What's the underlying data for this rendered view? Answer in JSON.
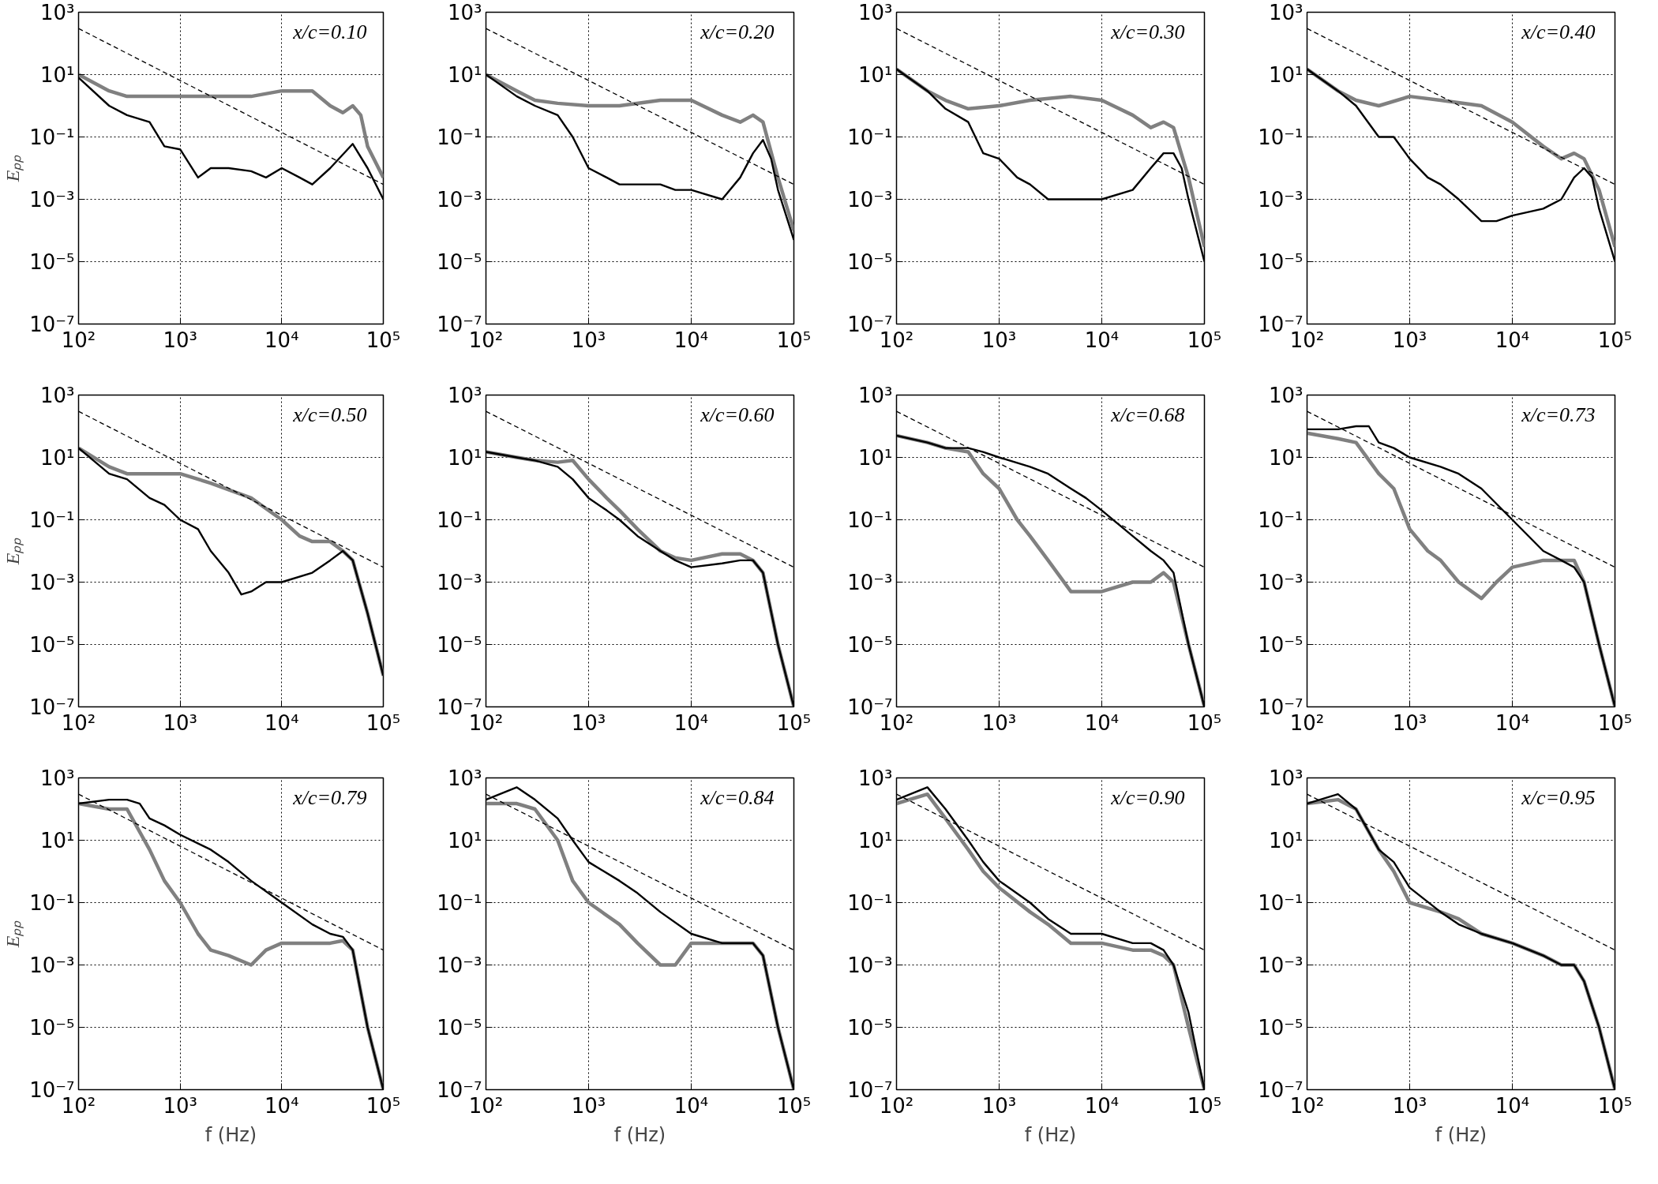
{
  "chart_data": [
    {
      "type": "line",
      "annotations": [
        "x/c=0.10"
      ],
      "ylabel": "Eₚₚ",
      "log": "xy",
      "grid": true,
      "xlim": [
        100,
        100000
      ],
      "ylim": [
        1e-07,
        1000
      ],
      "xticks": [
        {
          "value": 100,
          "label": "10²"
        },
        {
          "value": 1000,
          "label": "10³"
        },
        {
          "value": 10000,
          "label": "10⁴"
        },
        {
          "value": 100000,
          "label": "10⁵"
        }
      ],
      "yticks": [
        {
          "value": 1000,
          "label": "10³"
        },
        {
          "value": 10,
          "label": "10¹"
        },
        {
          "value": 0.1,
          "label": "10⁻¹"
        },
        {
          "value": 0.001,
          "label": "10⁻³"
        },
        {
          "value": 1e-05,
          "label": "10⁻⁵"
        },
        {
          "value": 1e-07,
          "label": "10⁻⁷"
        }
      ],
      "series": [
        {
          "color": "#808080",
          "x": [
            100,
            200,
            300,
            500,
            1000,
            2000,
            5000,
            10000,
            20000,
            30000,
            40000,
            50000,
            60000,
            70000,
            100000
          ],
          "values": [
            10,
            3,
            2,
            2,
            2,
            2,
            2,
            3,
            3,
            1,
            0.6,
            1,
            0.5,
            0.05,
            0.005
          ]
        },
        {
          "color": "#000000",
          "x": [
            100,
            200,
            300,
            500,
            700,
            1000,
            1500,
            2000,
            3000,
            5000,
            7000,
            10000,
            15000,
            20000,
            30000,
            50000,
            70000,
            100000
          ],
          "values": [
            8,
            1,
            0.5,
            0.3,
            0.05,
            0.04,
            0.005,
            0.01,
            0.01,
            0.008,
            0.005,
            0.01,
            0.005,
            0.003,
            0.01,
            0.06,
            0.01,
            0.001
          ]
        },
        {
          "color": "#000000",
          "line_style": "dashed",
          "x": [
            100,
            100000
          ],
          "values": [
            300,
            0.003
          ]
        }
      ]
    },
    {
      "type": "line",
      "annotations": [
        "x/c=0.20"
      ],
      "log": "xy",
      "grid": true,
      "xlim": [
        100,
        100000
      ],
      "ylim": [
        1e-07,
        1000
      ],
      "xticks": [
        {
          "value": 100,
          "label": "10²"
        },
        {
          "value": 1000,
          "label": "10³"
        },
        {
          "value": 10000,
          "label": "10⁴"
        },
        {
          "value": 100000,
          "label": "10⁵"
        }
      ],
      "yticks": [
        {
          "value": 1000,
          "label": "10³"
        },
        {
          "value": 10,
          "label": "10¹"
        },
        {
          "value": 0.1,
          "label": "10⁻¹"
        },
        {
          "value": 0.001,
          "label": "10⁻³"
        },
        {
          "value": 1e-05,
          "label": "10⁻⁵"
        },
        {
          "value": 1e-07,
          "label": "10⁻⁷"
        }
      ],
      "series": [
        {
          "color": "#808080",
          "x": [
            100,
            200,
            300,
            500,
            1000,
            2000,
            5000,
            10000,
            20000,
            30000,
            40000,
            50000,
            70000,
            100000
          ],
          "values": [
            10,
            3,
            1.5,
            1.2,
            1,
            1,
            1.5,
            1.5,
            0.5,
            0.3,
            0.5,
            0.3,
            0.005,
            0.0001
          ]
        },
        {
          "color": "#000000",
          "x": [
            100,
            200,
            300,
            500,
            700,
            1000,
            1500,
            2000,
            3000,
            5000,
            7000,
            10000,
            20000,
            30000,
            40000,
            50000,
            60000,
            70000,
            100000
          ],
          "values": [
            10,
            2,
            1,
            0.5,
            0.1,
            0.01,
            0.005,
            0.003,
            0.003,
            0.003,
            0.002,
            0.002,
            0.001,
            0.005,
            0.03,
            0.08,
            0.02,
            0.002,
            5e-05
          ]
        },
        {
          "color": "#000000",
          "line_style": "dashed",
          "x": [
            100,
            100000
          ],
          "values": [
            300,
            0.003
          ]
        }
      ]
    },
    {
      "type": "line",
      "annotations": [
        "x/c=0.30"
      ],
      "log": "xy",
      "grid": true,
      "xlim": [
        100,
        100000
      ],
      "ylim": [
        1e-07,
        1000
      ],
      "xticks": [
        {
          "value": 100,
          "label": "10²"
        },
        {
          "value": 1000,
          "label": "10³"
        },
        {
          "value": 10000,
          "label": "10⁴"
        },
        {
          "value": 100000,
          "label": "10⁵"
        }
      ],
      "yticks": [
        {
          "value": 1000,
          "label": "10³"
        },
        {
          "value": 10,
          "label": "10¹"
        },
        {
          "value": 0.1,
          "label": "10⁻¹"
        },
        {
          "value": 0.001,
          "label": "10⁻³"
        },
        {
          "value": 1e-05,
          "label": "10⁻⁵"
        },
        {
          "value": 1e-07,
          "label": "10⁻⁷"
        }
      ],
      "series": [
        {
          "color": "#808080",
          "x": [
            100,
            200,
            300,
            500,
            1000,
            2000,
            5000,
            10000,
            20000,
            30000,
            40000,
            50000,
            70000,
            100000
          ],
          "values": [
            15,
            3,
            1.5,
            0.8,
            1,
            1.5,
            2,
            1.5,
            0.5,
            0.2,
            0.3,
            0.2,
            0.005,
            3e-05
          ]
        },
        {
          "color": "#000000",
          "x": [
            100,
            200,
            300,
            500,
            700,
            1000,
            1500,
            2000,
            3000,
            5000,
            7000,
            10000,
            20000,
            30000,
            40000,
            50000,
            60000,
            70000,
            100000
          ],
          "values": [
            15,
            3,
            0.8,
            0.3,
            0.03,
            0.02,
            0.005,
            0.003,
            0.001,
            0.001,
            0.001,
            0.001,
            0.002,
            0.01,
            0.03,
            0.03,
            0.01,
            0.001,
            1e-05
          ]
        },
        {
          "color": "#000000",
          "line_style": "dashed",
          "x": [
            100,
            100000
          ],
          "values": [
            300,
            0.003
          ]
        }
      ]
    },
    {
      "type": "line",
      "annotations": [
        "x/c=0.40"
      ],
      "log": "xy",
      "grid": true,
      "xlim": [
        100,
        100000
      ],
      "ylim": [
        1e-07,
        1000
      ],
      "xticks": [
        {
          "value": 100,
          "label": "10²"
        },
        {
          "value": 1000,
          "label": "10³"
        },
        {
          "value": 10000,
          "label": "10⁴"
        },
        {
          "value": 100000,
          "label": "10⁵"
        }
      ],
      "yticks": [
        {
          "value": 1000,
          "label": "10³"
        },
        {
          "value": 10,
          "label": "10¹"
        },
        {
          "value": 0.1,
          "label": "10⁻¹"
        },
        {
          "value": 0.001,
          "label": "10⁻³"
        },
        {
          "value": 1e-05,
          "label": "10⁻⁵"
        },
        {
          "value": 1e-07,
          "label": "10⁻⁷"
        }
      ],
      "series": [
        {
          "color": "#808080",
          "x": [
            100,
            200,
            300,
            500,
            1000,
            2000,
            5000,
            10000,
            20000,
            30000,
            40000,
            50000,
            70000,
            100000
          ],
          "values": [
            15,
            3,
            1.5,
            1,
            2,
            1.5,
            1,
            0.3,
            0.05,
            0.02,
            0.03,
            0.02,
            0.002,
            3e-05
          ]
        },
        {
          "color": "#000000",
          "x": [
            100,
            200,
            300,
            500,
            700,
            1000,
            1500,
            2000,
            3000,
            5000,
            7000,
            10000,
            20000,
            30000,
            40000,
            50000,
            60000,
            70000,
            100000
          ],
          "values": [
            15,
            3,
            1,
            0.1,
            0.1,
            0.02,
            0.005,
            0.003,
            0.001,
            0.0002,
            0.0002,
            0.0003,
            0.0005,
            0.001,
            0.005,
            0.01,
            0.005,
            0.0005,
            1e-05
          ]
        },
        {
          "color": "#000000",
          "line_style": "dashed",
          "x": [
            100,
            100000
          ],
          "values": [
            300,
            0.003
          ]
        }
      ]
    },
    {
      "type": "line",
      "annotations": [
        "x/c=0.50"
      ],
      "ylabel": "Eₚₚ",
      "log": "xy",
      "grid": true,
      "xlim": [
        100,
        100000
      ],
      "ylim": [
        1e-07,
        1000
      ],
      "xticks": [
        {
          "value": 100,
          "label": "10²"
        },
        {
          "value": 1000,
          "label": "10³"
        },
        {
          "value": 10000,
          "label": "10⁴"
        },
        {
          "value": 100000,
          "label": "10⁵"
        }
      ],
      "yticks": [
        {
          "value": 1000,
          "label": "10³"
        },
        {
          "value": 10,
          "label": "10¹"
        },
        {
          "value": 0.1,
          "label": "10⁻¹"
        },
        {
          "value": 0.001,
          "label": "10⁻³"
        },
        {
          "value": 1e-05,
          "label": "10⁻⁵"
        },
        {
          "value": 1e-07,
          "label": "10⁻⁷"
        }
      ],
      "series": [
        {
          "color": "#808080",
          "x": [
            100,
            200,
            300,
            500,
            1000,
            2000,
            5000,
            10000,
            15000,
            20000,
            30000,
            40000,
            50000,
            70000,
            100000
          ],
          "values": [
            20,
            5,
            3,
            3,
            3,
            1.5,
            0.5,
            0.1,
            0.03,
            0.02,
            0.02,
            0.01,
            0.005,
            0.0001,
            1e-06
          ]
        },
        {
          "color": "#000000",
          "x": [
            100,
            200,
            300,
            500,
            700,
            1000,
            1500,
            2000,
            3000,
            4000,
            5000,
            7000,
            10000,
            20000,
            30000,
            40000,
            50000,
            70000,
            100000
          ],
          "values": [
            20,
            3,
            2,
            0.5,
            0.3,
            0.1,
            0.05,
            0.01,
            0.002,
            0.0004,
            0.0005,
            0.001,
            0.001,
            0.002,
            0.005,
            0.01,
            0.005,
            0.0001,
            1e-06
          ]
        },
        {
          "color": "#000000",
          "line_style": "dashed",
          "x": [
            100,
            100000
          ],
          "values": [
            300,
            0.003
          ]
        }
      ]
    },
    {
      "type": "line",
      "annotations": [
        "x/c=0.60"
      ],
      "log": "xy",
      "grid": true,
      "xlim": [
        100,
        100000
      ],
      "ylim": [
        1e-07,
        1000
      ],
      "xticks": [
        {
          "value": 100,
          "label": "10²"
        },
        {
          "value": 1000,
          "label": "10³"
        },
        {
          "value": 10000,
          "label": "10⁴"
        },
        {
          "value": 100000,
          "label": "10⁵"
        }
      ],
      "yticks": [
        {
          "value": 1000,
          "label": "10³"
        },
        {
          "value": 10,
          "label": "10¹"
        },
        {
          "value": 0.1,
          "label": "10⁻¹"
        },
        {
          "value": 0.001,
          "label": "10⁻³"
        },
        {
          "value": 1e-05,
          "label": "10⁻⁵"
        },
        {
          "value": 1e-07,
          "label": "10⁻⁷"
        }
      ],
      "series": [
        {
          "color": "#808080",
          "x": [
            100,
            200,
            300,
            500,
            700,
            1000,
            1500,
            2000,
            3000,
            5000,
            7000,
            10000,
            20000,
            30000,
            40000,
            50000,
            70000,
            100000
          ],
          "values": [
            15,
            10,
            8,
            7,
            8,
            2,
            0.5,
            0.2,
            0.05,
            0.01,
            0.006,
            0.005,
            0.008,
            0.008,
            0.005,
            0.002,
            1e-05,
            1e-07
          ]
        },
        {
          "color": "#000000",
          "x": [
            100,
            200,
            300,
            500,
            700,
            1000,
            1500,
            2000,
            3000,
            5000,
            7000,
            10000,
            20000,
            30000,
            40000,
            50000,
            70000,
            100000
          ],
          "values": [
            15,
            10,
            8,
            5,
            2,
            0.5,
            0.2,
            0.1,
            0.03,
            0.01,
            0.005,
            0.003,
            0.004,
            0.005,
            0.005,
            0.002,
            1e-05,
            1e-07
          ]
        },
        {
          "color": "#000000",
          "line_style": "dashed",
          "x": [
            100,
            100000
          ],
          "values": [
            300,
            0.003
          ]
        }
      ]
    },
    {
      "type": "line",
      "annotations": [
        "x/c=0.68"
      ],
      "log": "xy",
      "grid": true,
      "xlim": [
        100,
        100000
      ],
      "ylim": [
        1e-07,
        1000
      ],
      "xticks": [
        {
          "value": 100,
          "label": "10²"
        },
        {
          "value": 1000,
          "label": "10³"
        },
        {
          "value": 10000,
          "label": "10⁴"
        },
        {
          "value": 100000,
          "label": "10⁵"
        }
      ],
      "yticks": [
        {
          "value": 1000,
          "label": "10³"
        },
        {
          "value": 10,
          "label": "10¹"
        },
        {
          "value": 0.1,
          "label": "10⁻¹"
        },
        {
          "value": 0.001,
          "label": "10⁻³"
        },
        {
          "value": 1e-05,
          "label": "10⁻⁵"
        },
        {
          "value": 1e-07,
          "label": "10⁻⁷"
        }
      ],
      "series": [
        {
          "color": "#808080",
          "x": [
            100,
            200,
            300,
            500,
            700,
            1000,
            1500,
            2000,
            3000,
            5000,
            7000,
            10000,
            20000,
            30000,
            40000,
            50000,
            70000,
            100000
          ],
          "values": [
            50,
            30,
            20,
            15,
            3,
            1,
            0.1,
            0.03,
            0.005,
            0.0005,
            0.0005,
            0.0005,
            0.001,
            0.001,
            0.002,
            0.001,
            1e-05,
            1e-07
          ]
        },
        {
          "color": "#000000",
          "x": [
            100,
            200,
            300,
            500,
            700,
            1000,
            2000,
            3000,
            5000,
            7000,
            10000,
            20000,
            30000,
            40000,
            50000,
            70000,
            100000
          ],
          "values": [
            50,
            30,
            20,
            20,
            15,
            10,
            5,
            3,
            1,
            0.5,
            0.2,
            0.03,
            0.01,
            0.005,
            0.002,
            1e-05,
            1e-07
          ]
        },
        {
          "color": "#000000",
          "line_style": "dashed",
          "x": [
            100,
            100000
          ],
          "values": [
            300,
            0.003
          ]
        }
      ]
    },
    {
      "type": "line",
      "annotations": [
        "x/c=0.73"
      ],
      "log": "xy",
      "grid": true,
      "xlim": [
        100,
        100000
      ],
      "ylim": [
        1e-07,
        1000
      ],
      "xticks": [
        {
          "value": 100,
          "label": "10²"
        },
        {
          "value": 1000,
          "label": "10³"
        },
        {
          "value": 10000,
          "label": "10⁴"
        },
        {
          "value": 100000,
          "label": "10⁵"
        }
      ],
      "yticks": [
        {
          "value": 1000,
          "label": "10³"
        },
        {
          "value": 10,
          "label": "10¹"
        },
        {
          "value": 0.1,
          "label": "10⁻¹"
        },
        {
          "value": 0.001,
          "label": "10⁻³"
        },
        {
          "value": 1e-05,
          "label": "10⁻⁵"
        },
        {
          "value": 1e-07,
          "label": "10⁻⁷"
        }
      ],
      "series": [
        {
          "color": "#808080",
          "x": [
            100,
            200,
            300,
            500,
            700,
            1000,
            1500,
            2000,
            3000,
            5000,
            7000,
            10000,
            20000,
            30000,
            40000,
            50000,
            70000,
            100000
          ],
          "values": [
            60,
            40,
            30,
            3,
            1,
            0.05,
            0.01,
            0.005,
            0.001,
            0.0003,
            0.001,
            0.003,
            0.005,
            0.005,
            0.005,
            0.001,
            1e-05,
            1e-07
          ]
        },
        {
          "color": "#000000",
          "x": [
            100,
            200,
            300,
            400,
            500,
            700,
            1000,
            2000,
            3000,
            5000,
            10000,
            20000,
            30000,
            40000,
            50000,
            70000,
            100000
          ],
          "values": [
            80,
            80,
            100,
            100,
            30,
            20,
            10,
            5,
            3,
            1,
            0.1,
            0.01,
            0.005,
            0.003,
            0.001,
            1e-05,
            1e-07
          ]
        },
        {
          "color": "#000000",
          "line_style": "dashed",
          "x": [
            100,
            100000
          ],
          "values": [
            300,
            0.003
          ]
        }
      ]
    },
    {
      "type": "line",
      "annotations": [
        "x/c=0.79"
      ],
      "ylabel": "Eₚₚ",
      "xlabel": "f (Hz)",
      "log": "xy",
      "grid": true,
      "xlim": [
        100,
        100000
      ],
      "ylim": [
        1e-07,
        1000
      ],
      "xticks": [
        {
          "value": 100,
          "label": "10²"
        },
        {
          "value": 1000,
          "label": "10³"
        },
        {
          "value": 10000,
          "label": "10⁴"
        },
        {
          "value": 100000,
          "label": "10⁵"
        }
      ],
      "yticks": [
        {
          "value": 1000,
          "label": "10³"
        },
        {
          "value": 10,
          "label": "10¹"
        },
        {
          "value": 0.1,
          "label": "10⁻¹"
        },
        {
          "value": 0.001,
          "label": "10⁻³"
        },
        {
          "value": 1e-05,
          "label": "10⁻⁵"
        },
        {
          "value": 1e-07,
          "label": "10⁻⁷"
        }
      ],
      "series": [
        {
          "color": "#808080",
          "x": [
            100,
            200,
            300,
            500,
            700,
            1000,
            1500,
            2000,
            3000,
            5000,
            7000,
            10000,
            20000,
            30000,
            40000,
            50000,
            70000,
            100000
          ],
          "values": [
            150,
            100,
            100,
            5,
            0.5,
            0.1,
            0.01,
            0.003,
            0.002,
            0.001,
            0.003,
            0.005,
            0.005,
            0.005,
            0.006,
            0.003,
            1e-05,
            1e-07
          ]
        },
        {
          "color": "#000000",
          "x": [
            100,
            200,
            300,
            400,
            500,
            700,
            1000,
            2000,
            3000,
            5000,
            10000,
            20000,
            30000,
            40000,
            50000,
            70000,
            100000
          ],
          "values": [
            150,
            200,
            200,
            150,
            50,
            30,
            15,
            5,
            2,
            0.5,
            0.1,
            0.02,
            0.01,
            0.008,
            0.003,
            1e-05,
            1e-07
          ]
        },
        {
          "color": "#000000",
          "line_style": "dashed",
          "x": [
            100,
            100000
          ],
          "values": [
            300,
            0.003
          ]
        }
      ]
    },
    {
      "type": "line",
      "annotations": [
        "x/c=0.84"
      ],
      "xlabel": "f (Hz)",
      "log": "xy",
      "grid": true,
      "xlim": [
        100,
        100000
      ],
      "ylim": [
        1e-07,
        1000
      ],
      "xticks": [
        {
          "value": 100,
          "label": "10²"
        },
        {
          "value": 1000,
          "label": "10³"
        },
        {
          "value": 10000,
          "label": "10⁴"
        },
        {
          "value": 100000,
          "label": "10⁵"
        }
      ],
      "yticks": [
        {
          "value": 1000,
          "label": "10³"
        },
        {
          "value": 10,
          "label": "10¹"
        },
        {
          "value": 0.1,
          "label": "10⁻¹"
        },
        {
          "value": 0.001,
          "label": "10⁻³"
        },
        {
          "value": 1e-05,
          "label": "10⁻⁵"
        },
        {
          "value": 1e-07,
          "label": "10⁻⁷"
        }
      ],
      "series": [
        {
          "color": "#808080",
          "x": [
            100,
            200,
            300,
            500,
            700,
            1000,
            2000,
            3000,
            5000,
            7000,
            10000,
            20000,
            30000,
            40000,
            50000,
            70000,
            100000
          ],
          "values": [
            150,
            150,
            100,
            10,
            0.5,
            0.1,
            0.02,
            0.005,
            0.001,
            0.001,
            0.005,
            0.005,
            0.005,
            0.005,
            0.002,
            1e-05,
            1e-07
          ]
        },
        {
          "color": "#000000",
          "x": [
            100,
            200,
            300,
            500,
            700,
            1000,
            2000,
            3000,
            5000,
            10000,
            20000,
            30000,
            40000,
            50000,
            70000,
            100000
          ],
          "values": [
            200,
            500,
            200,
            50,
            10,
            2,
            0.5,
            0.2,
            0.05,
            0.01,
            0.005,
            0.005,
            0.005,
            0.002,
            1e-05,
            1e-07
          ]
        },
        {
          "color": "#000000",
          "line_style": "dashed",
          "x": [
            100,
            100000
          ],
          "values": [
            300,
            0.003
          ]
        }
      ]
    },
    {
      "type": "line",
      "annotations": [
        "x/c=0.90"
      ],
      "xlabel": "f (Hz)",
      "log": "xy",
      "grid": true,
      "xlim": [
        100,
        100000
      ],
      "ylim": [
        1e-07,
        1000
      ],
      "xticks": [
        {
          "value": 100,
          "label": "10²"
        },
        {
          "value": 1000,
          "label": "10³"
        },
        {
          "value": 10000,
          "label": "10⁴"
        },
        {
          "value": 100000,
          "label": "10⁵"
        }
      ],
      "yticks": [
        {
          "value": 1000,
          "label": "10³"
        },
        {
          "value": 10,
          "label": "10¹"
        },
        {
          "value": 0.1,
          "label": "10⁻¹"
        },
        {
          "value": 0.001,
          "label": "10⁻³"
        },
        {
          "value": 1e-05,
          "label": "10⁻⁵"
        },
        {
          "value": 1e-07,
          "label": "10⁻⁷"
        }
      ],
      "series": [
        {
          "color": "#808080",
          "x": [
            100,
            200,
            300,
            500,
            700,
            1000,
            2000,
            3000,
            5000,
            10000,
            20000,
            30000,
            40000,
            50000,
            70000,
            100000
          ],
          "values": [
            150,
            300,
            50,
            5,
            1,
            0.3,
            0.05,
            0.02,
            0.005,
            0.005,
            0.003,
            0.003,
            0.002,
            0.001,
            1e-05,
            1e-07
          ]
        },
        {
          "color": "#000000",
          "x": [
            100,
            200,
            300,
            500,
            700,
            1000,
            2000,
            3000,
            5000,
            10000,
            20000,
            30000,
            40000,
            50000,
            70000,
            100000
          ],
          "values": [
            200,
            500,
            100,
            10,
            2,
            0.5,
            0.1,
            0.03,
            0.01,
            0.01,
            0.005,
            0.005,
            0.003,
            0.001,
            3e-05,
            1e-07
          ]
        },
        {
          "color": "#000000",
          "line_style": "dashed",
          "x": [
            100,
            100000
          ],
          "values": [
            300,
            0.003
          ]
        }
      ]
    },
    {
      "type": "line",
      "annotations": [
        "x/c=0.95"
      ],
      "xlabel": "f (Hz)",
      "log": "xy",
      "grid": true,
      "xlim": [
        100,
        100000
      ],
      "ylim": [
        1e-07,
        1000
      ],
      "xticks": [
        {
          "value": 100,
          "label": "10²"
        },
        {
          "value": 1000,
          "label": "10³"
        },
        {
          "value": 10000,
          "label": "10⁴"
        },
        {
          "value": 100000,
          "label": "10⁵"
        }
      ],
      "yticks": [
        {
          "value": 1000,
          "label": "10³"
        },
        {
          "value": 10,
          "label": "10¹"
        },
        {
          "value": 0.1,
          "label": "10⁻¹"
        },
        {
          "value": 0.001,
          "label": "10⁻³"
        },
        {
          "value": 1e-05,
          "label": "10⁻⁵"
        },
        {
          "value": 1e-07,
          "label": "10⁻⁷"
        }
      ],
      "series": [
        {
          "color": "#808080",
          "x": [
            100,
            200,
            300,
            500,
            700,
            1000,
            2000,
            3000,
            5000,
            10000,
            20000,
            30000,
            40000,
            50000,
            70000,
            100000
          ],
          "values": [
            150,
            200,
            100,
            5,
            1,
            0.1,
            0.05,
            0.03,
            0.01,
            0.005,
            0.002,
            0.001,
            0.001,
            0.0003,
            1e-05,
            1e-07
          ]
        },
        {
          "color": "#000000",
          "x": [
            100,
            200,
            300,
            500,
            700,
            1000,
            2000,
            3000,
            5000,
            10000,
            20000,
            30000,
            40000,
            50000,
            70000,
            100000
          ],
          "values": [
            150,
            300,
            100,
            5,
            2,
            0.3,
            0.05,
            0.02,
            0.01,
            0.005,
            0.002,
            0.001,
            0.001,
            0.0003,
            1e-05,
            1e-07
          ]
        },
        {
          "color": "#000000",
          "line_style": "dashed",
          "x": [
            100,
            100000
          ],
          "values": [
            300,
            0.003
          ]
        }
      ]
    }
  ]
}
